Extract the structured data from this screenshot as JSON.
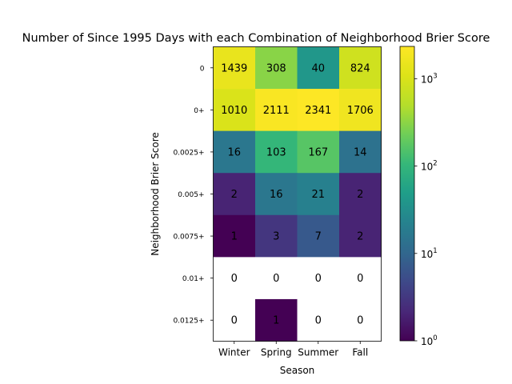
{
  "chart_data": {
    "type": "heatmap",
    "title": "Number of Since 1995 Days with each Combination of Neighborhood Brier Score",
    "xlabel": "Season",
    "ylabel": "Neighborhood Brier Score",
    "x_categories": [
      "Winter",
      "Spring",
      "Summer",
      "Fall"
    ],
    "y_categories": [
      "0",
      "0+",
      "0.0025+",
      "0.005+",
      "0.0075+",
      "0.01+",
      "0.0125+"
    ],
    "values": [
      [
        1439,
        308,
        40,
        824
      ],
      [
        1010,
        2111,
        2341,
        1706
      ],
      [
        16,
        103,
        167,
        14
      ],
      [
        2,
        16,
        21,
        2
      ],
      [
        1,
        3,
        7,
        2
      ],
      [
        0,
        0,
        0,
        0
      ],
      [
        0,
        1,
        0,
        0
      ]
    ],
    "color_scale": "log",
    "colormap": "viridis",
    "zero_color": "#ffffff",
    "colorbar": {
      "range": [
        1,
        2341
      ],
      "ticks": [
        {
          "base": "10",
          "exp": "0"
        },
        {
          "base": "10",
          "exp": "1"
        },
        {
          "base": "10",
          "exp": "2"
        },
        {
          "base": "10",
          "exp": "3"
        }
      ]
    }
  }
}
